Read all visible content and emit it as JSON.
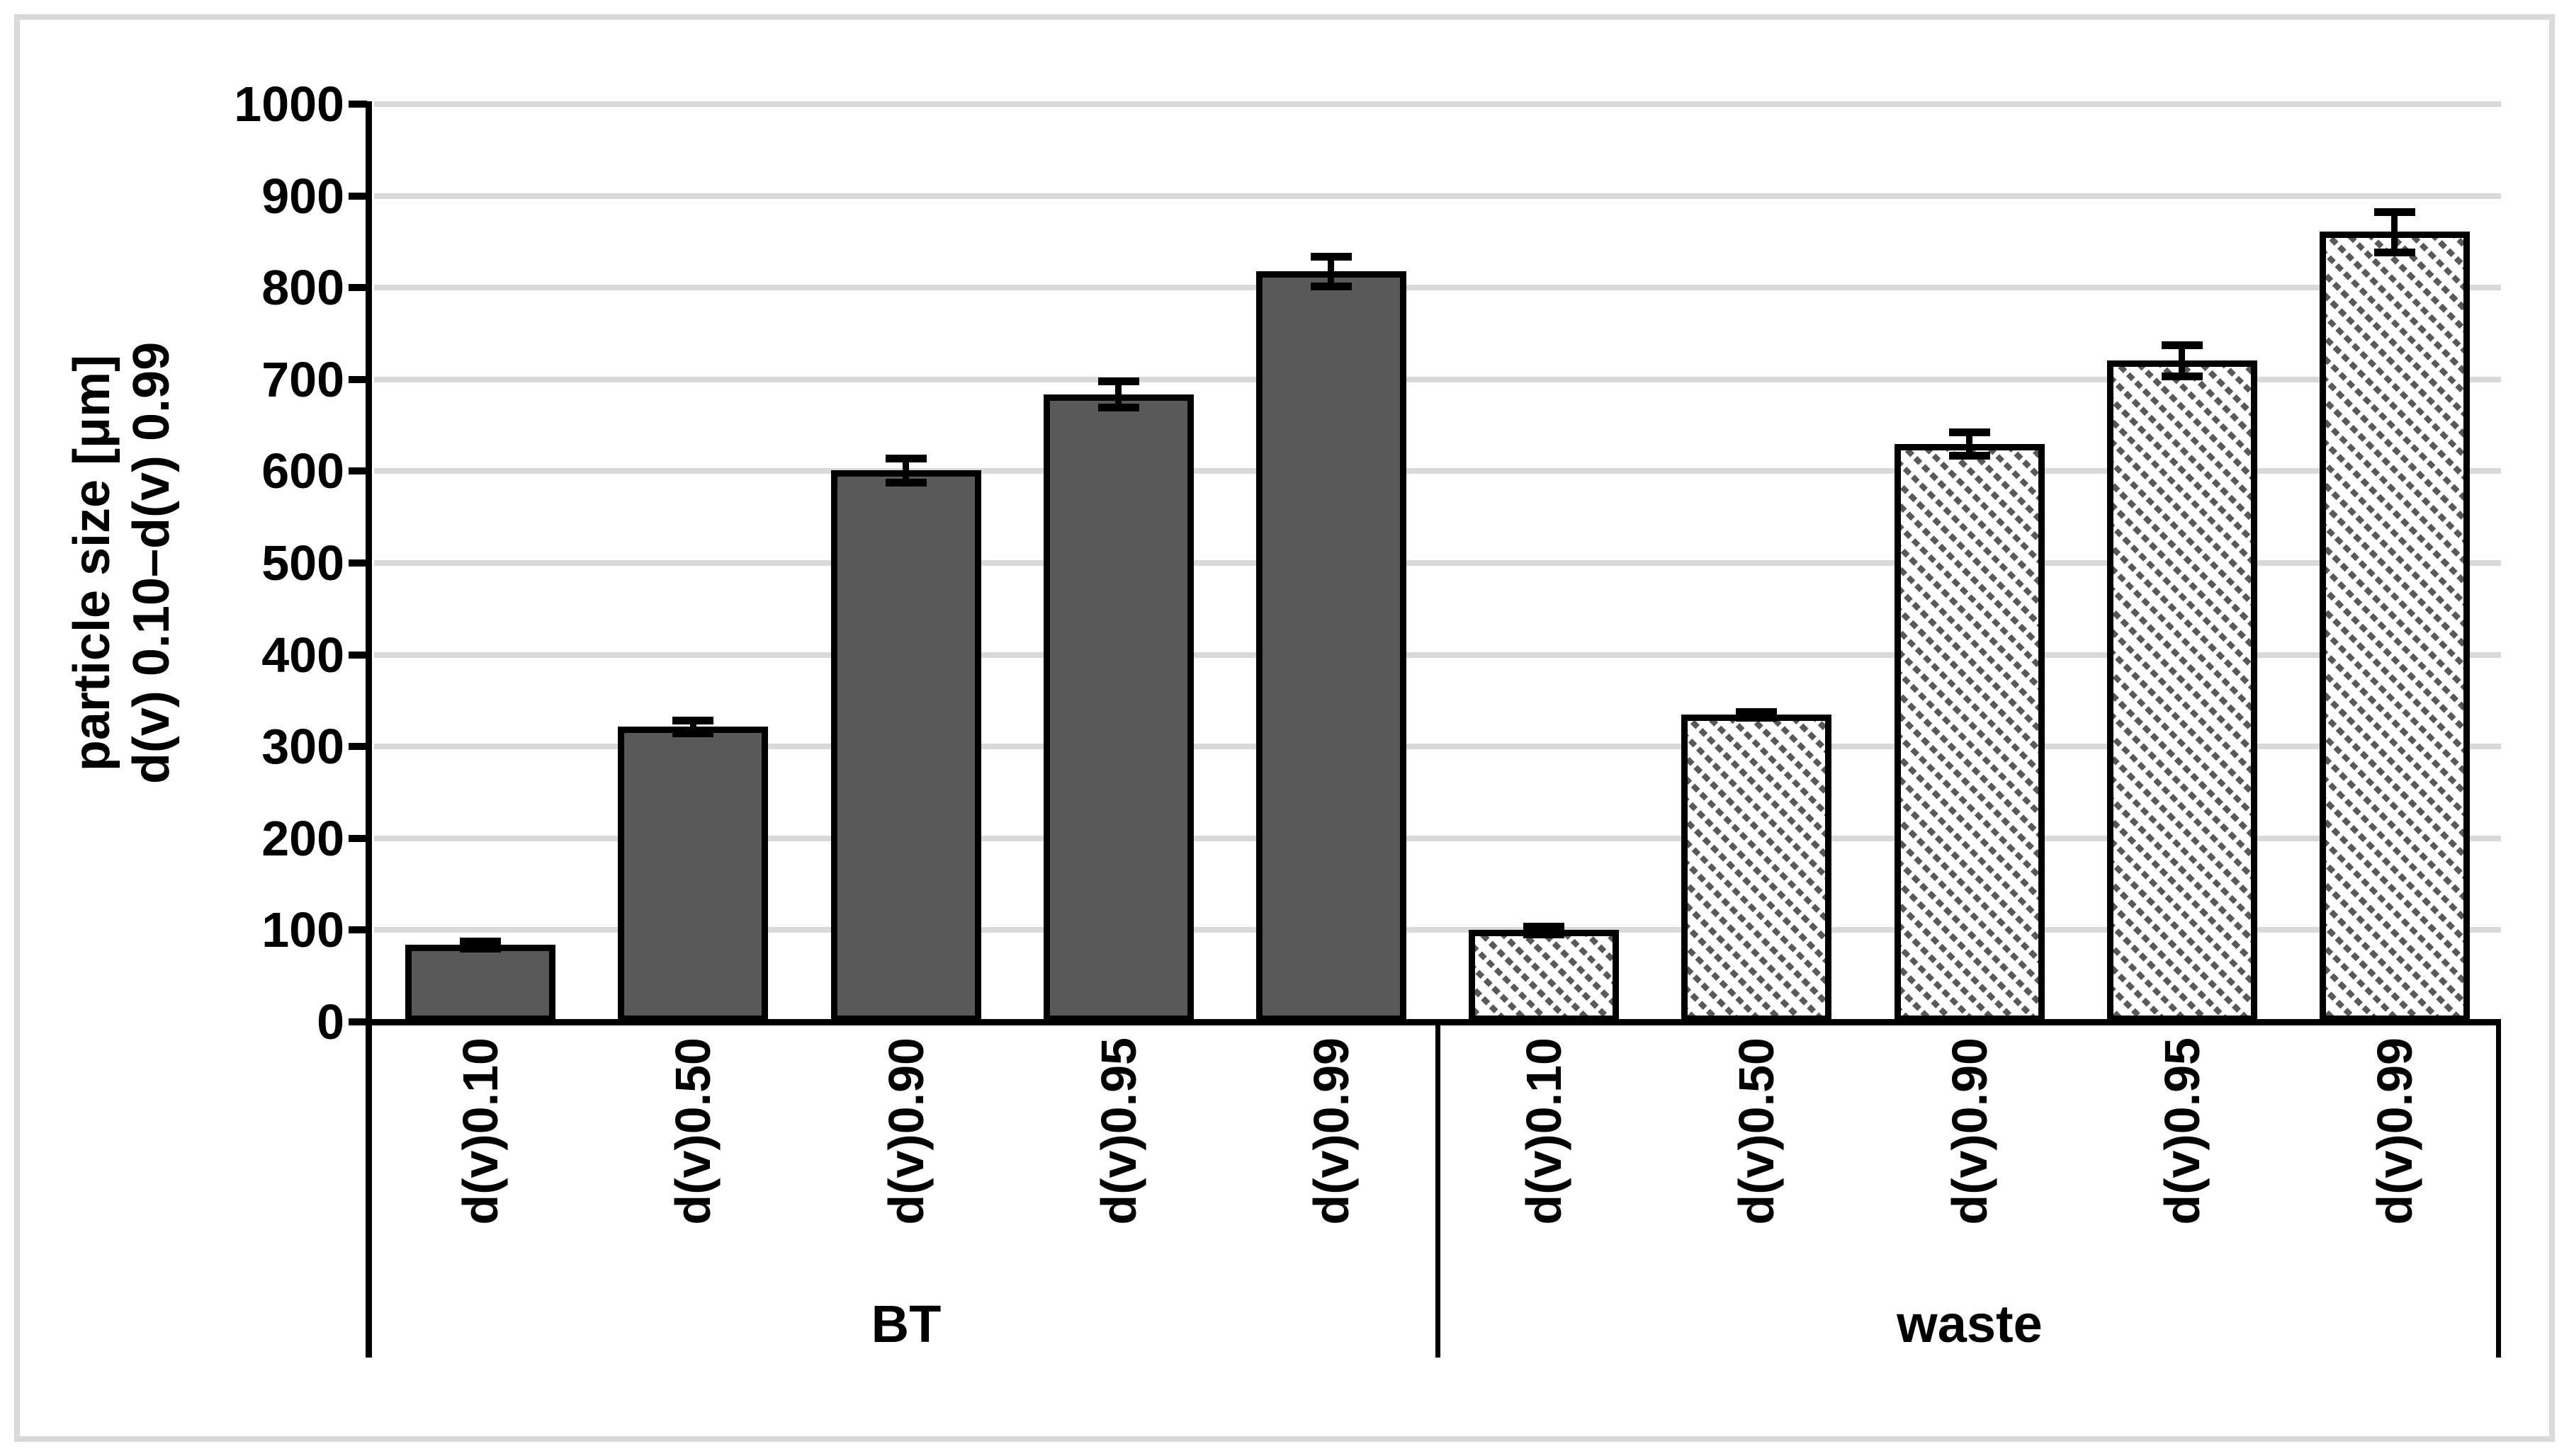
{
  "figure": {
    "background": "#ffffff",
    "frame_border_color": "#d9d9d9"
  },
  "chart_data": {
    "type": "bar",
    "title": "",
    "ylabel_line1": "particle size [μm]",
    "ylabel_line2": "d(v) 0.10–d(v) 0.99",
    "ylim": [
      0,
      1000
    ],
    "ytick_labels": [
      "0",
      "100",
      "200",
      "300",
      "400",
      "500",
      "600",
      "700",
      "800",
      "900",
      "1000"
    ],
    "grid": "horizontal gridlines every 100, light gray",
    "legend": "none",
    "error_bars": true,
    "colors": {
      "bar_fill": "#595959",
      "bar_border": "#000000",
      "gridline": "#d9d9d9",
      "axis": "#000000",
      "hatch": "#595959"
    },
    "groups": [
      {
        "label": "BT",
        "pattern": "solid-dark-gray",
        "categories": [
          "d(v)0.10",
          "d(v)0.50",
          "d(v)0.90",
          "d(v)0.95",
          "d(v)0.99"
        ],
        "values": [
          84,
          322,
          601,
          684,
          818
        ],
        "errors": [
          4,
          7,
          13,
          14,
          16
        ]
      },
      {
        "label": "waste",
        "pattern": "diagonal-hatch",
        "categories": [
          "d(v)0.10",
          "d(v)0.50",
          "d(v)0.90",
          "d(v)0.95",
          "d(v)0.99"
        ],
        "values": [
          100,
          335,
          630,
          721,
          861
        ],
        "errors": [
          4,
          3,
          13,
          17,
          22
        ]
      }
    ]
  }
}
